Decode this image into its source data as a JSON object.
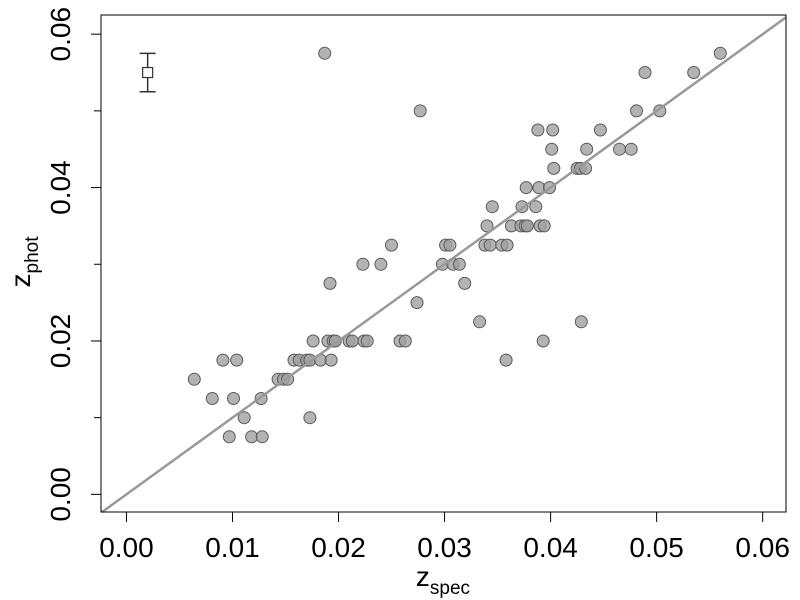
{
  "chart_data": {
    "type": "scatter",
    "xlabel": "z",
    "xlabel_sub": "spec",
    "ylabel": "z",
    "ylabel_sub": "phot",
    "xlim": [
      -0.0024,
      0.0622
    ],
    "ylim": [
      -0.0023,
      0.0625
    ],
    "x_ticks": [
      "0.00",
      "0.01",
      "0.02",
      "0.03",
      "0.04",
      "0.05",
      "0.06"
    ],
    "x_tick_values": [
      0.0,
      0.01,
      0.02,
      0.03,
      0.04,
      0.05,
      0.06
    ],
    "y_ticks": [
      "0.00",
      "0.02",
      "0.04",
      "0.06"
    ],
    "y_tick_values": [
      0.0,
      0.02,
      0.04,
      0.06
    ],
    "y_minor_tick_values": [
      0.01,
      0.03,
      0.05
    ],
    "grid": false,
    "colors": {
      "points": "#a0a0a0",
      "point_stroke": "#5a5a5a",
      "identity_line": "#999999",
      "frame": "#000000"
    },
    "identity_line": true,
    "error_bar_example": {
      "x": 0.002,
      "y": 0.055,
      "y_low": 0.0525,
      "y_high": 0.0575
    },
    "points": [
      [
        0.0064,
        0.015
      ],
      [
        0.0081,
        0.0125
      ],
      [
        0.0091,
        0.0175
      ],
      [
        0.0097,
        0.0075
      ],
      [
        0.0101,
        0.0125
      ],
      [
        0.0104,
        0.0175
      ],
      [
        0.0111,
        0.01
      ],
      [
        0.0118,
        0.0075
      ],
      [
        0.0127,
        0.0125
      ],
      [
        0.0128,
        0.0075
      ],
      [
        0.0143,
        0.015
      ],
      [
        0.0148,
        0.015
      ],
      [
        0.0152,
        0.015
      ],
      [
        0.0158,
        0.0175
      ],
      [
        0.0163,
        0.0175
      ],
      [
        0.017,
        0.0175
      ],
      [
        0.0173,
        0.0175
      ],
      [
        0.0173,
        0.01
      ],
      [
        0.0176,
        0.02
      ],
      [
        0.0183,
        0.0175
      ],
      [
        0.0187,
        0.0575
      ],
      [
        0.019,
        0.02
      ],
      [
        0.0192,
        0.0275
      ],
      [
        0.0193,
        0.0175
      ],
      [
        0.0195,
        0.02
      ],
      [
        0.0197,
        0.02
      ],
      [
        0.021,
        0.02
      ],
      [
        0.0213,
        0.02
      ],
      [
        0.0223,
        0.03
      ],
      [
        0.0224,
        0.02
      ],
      [
        0.0227,
        0.02
      ],
      [
        0.024,
        0.03
      ],
      [
        0.025,
        0.0325
      ],
      [
        0.0258,
        0.02
      ],
      [
        0.0263,
        0.02
      ],
      [
        0.0274,
        0.025
      ],
      [
        0.0277,
        0.05
      ],
      [
        0.0298,
        0.03
      ],
      [
        0.0301,
        0.0325
      ],
      [
        0.0305,
        0.0325
      ],
      [
        0.0308,
        0.03
      ],
      [
        0.0314,
        0.03
      ],
      [
        0.0319,
        0.0275
      ],
      [
        0.0333,
        0.0225
      ],
      [
        0.0338,
        0.0325
      ],
      [
        0.034,
        0.035
      ],
      [
        0.0343,
        0.0325
      ],
      [
        0.0345,
        0.0375
      ],
      [
        0.0354,
        0.0325
      ],
      [
        0.0358,
        0.0175
      ],
      [
        0.0359,
        0.0325
      ],
      [
        0.0363,
        0.035
      ],
      [
        0.0372,
        0.035
      ],
      [
        0.0373,
        0.0375
      ],
      [
        0.0376,
        0.035
      ],
      [
        0.0377,
        0.04
      ],
      [
        0.0378,
        0.035
      ],
      [
        0.0386,
        0.0375
      ],
      [
        0.0388,
        0.0475
      ],
      [
        0.0389,
        0.04
      ],
      [
        0.039,
        0.035
      ],
      [
        0.0393,
        0.02
      ],
      [
        0.0394,
        0.035
      ],
      [
        0.0399,
        0.04
      ],
      [
        0.0401,
        0.045
      ],
      [
        0.0402,
        0.0475
      ],
      [
        0.0403,
        0.0425
      ],
      [
        0.0425,
        0.0425
      ],
      [
        0.0428,
        0.0425
      ],
      [
        0.0429,
        0.0225
      ],
      [
        0.0433,
        0.0425
      ],
      [
        0.0434,
        0.045
      ],
      [
        0.0447,
        0.0475
      ],
      [
        0.0465,
        0.045
      ],
      [
        0.0476,
        0.045
      ],
      [
        0.0481,
        0.05
      ],
      [
        0.0489,
        0.055
      ],
      [
        0.0503,
        0.05
      ],
      [
        0.0535,
        0.055
      ],
      [
        0.056,
        0.0575
      ]
    ]
  }
}
